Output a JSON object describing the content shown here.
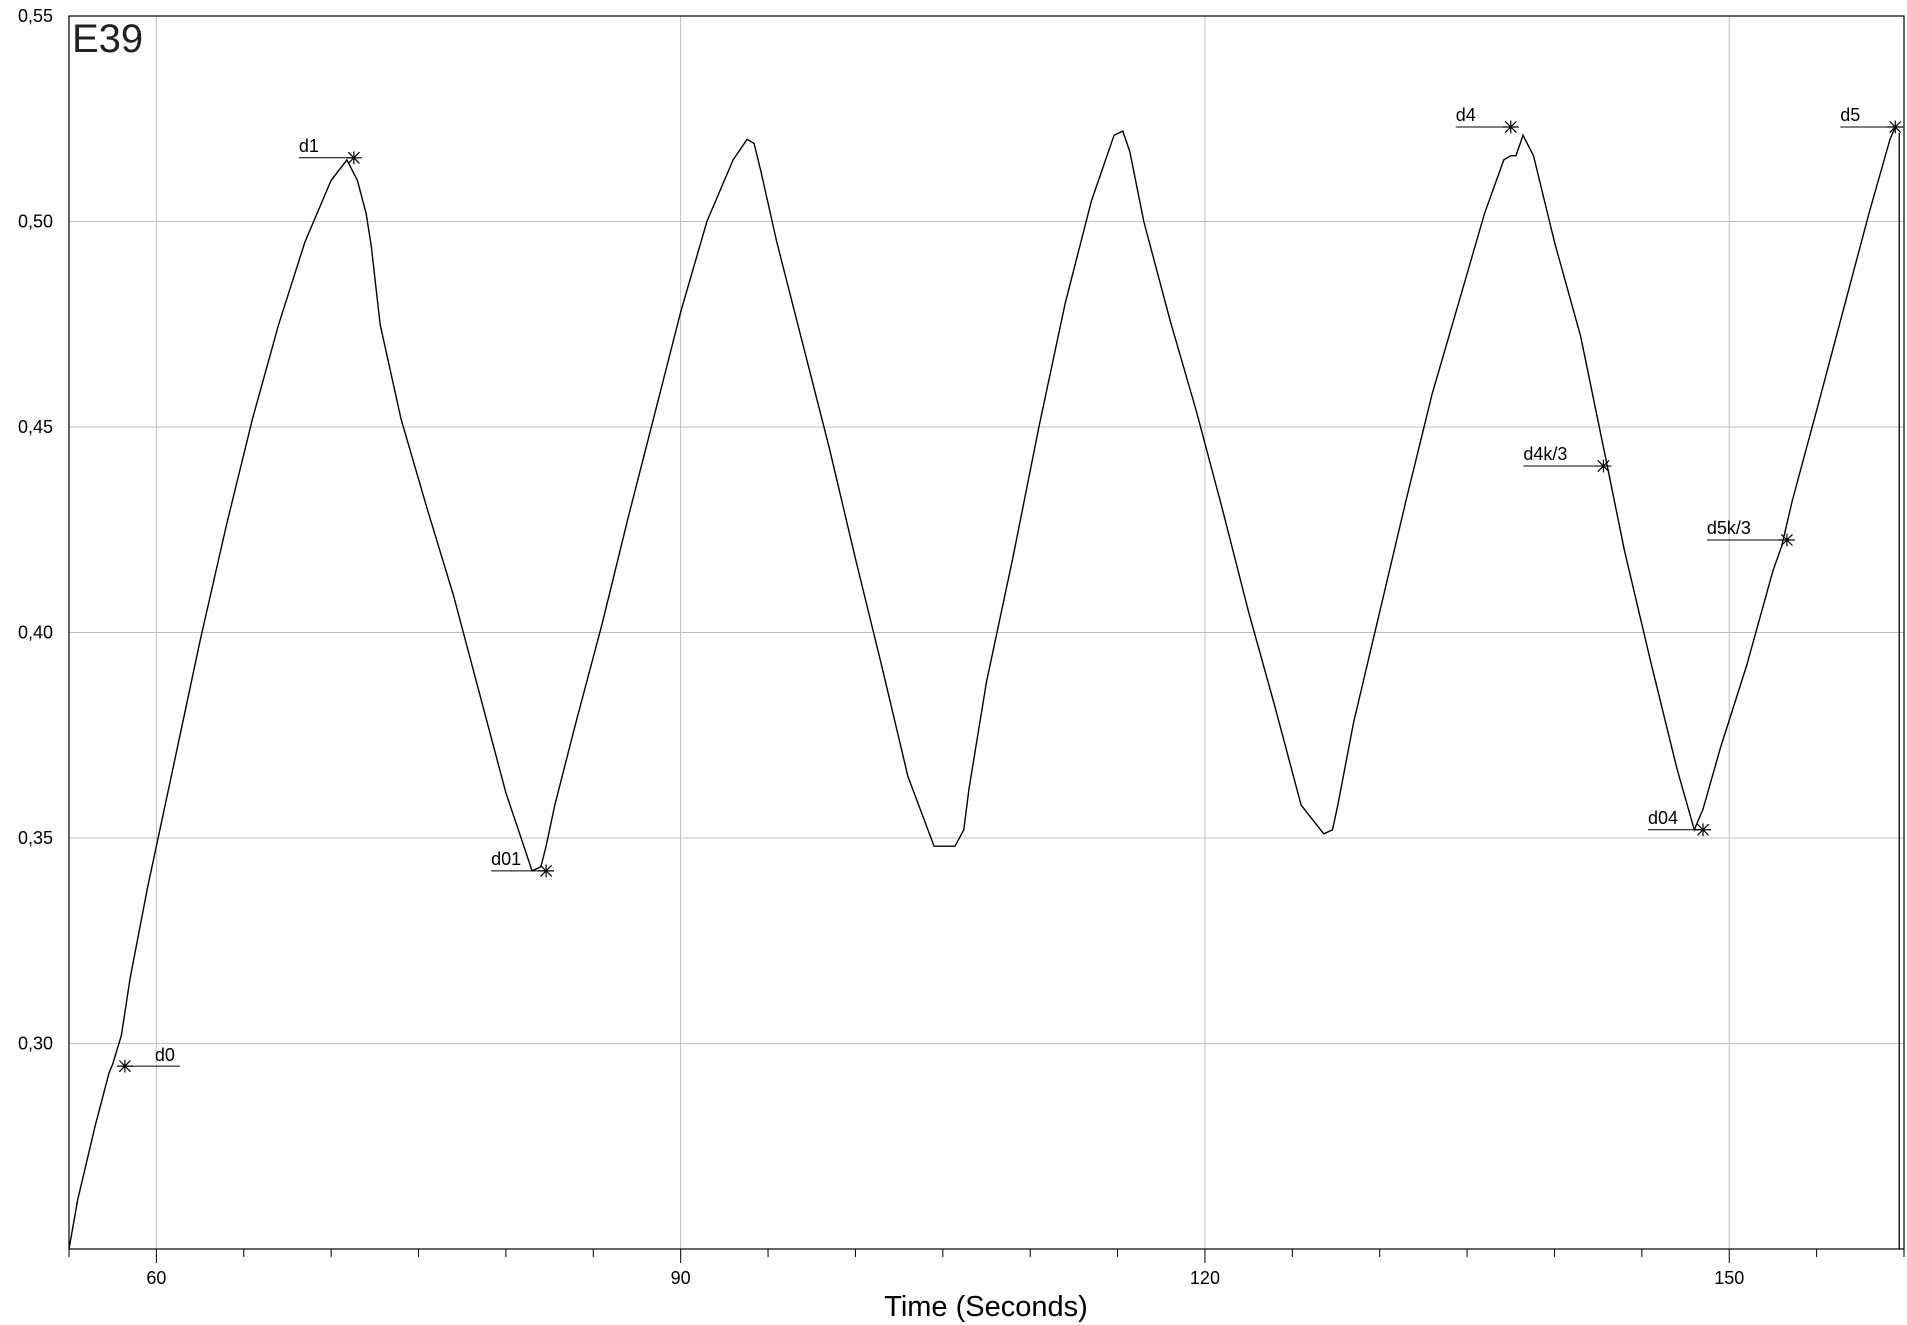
{
  "chart_data": {
    "type": "line",
    "title": "E39",
    "xlabel": "Time (Seconds)",
    "ylabel": "",
    "xlim": [
      55,
      160
    ],
    "ylim": [
      0.25,
      0.55
    ],
    "xtick_values": [
      60,
      90,
      120,
      150
    ],
    "xtick_labels": [
      "60",
      "90",
      "120",
      "150"
    ],
    "x_minor_step": 5,
    "ytick_values": [
      0.3,
      0.35,
      0.4,
      0.45,
      0.5,
      0.55
    ],
    "ytick_labels": [
      "0,30",
      "0,35",
      "0,40",
      "0,45",
      "0,50",
      "0,55"
    ],
    "grid": true,
    "legend": "none",
    "line_color": "#000000",
    "grid_color": "#c0c0c0",
    "series": [
      {
        "x": [
          55.0,
          55.5,
          56.5,
          57.3,
          57.5,
          58.0,
          58.5,
          59.5,
          61.0,
          62.5,
          64.0,
          65.5,
          67.0,
          68.5,
          70.0,
          70.9,
          71.5,
          72.0,
          72.3,
          72.8,
          74.0,
          75.5,
          77.0,
          78.5,
          80.0,
          81.5,
          82.0,
          82.3,
          82.8,
          84.0,
          85.5,
          87.0,
          88.5,
          90.0,
          91.5,
          93.0,
          93.8,
          94.2,
          94.6,
          95.5,
          97.0,
          98.5,
          100.0,
          101.5,
          103.0,
          104.5,
          105.7,
          106.2,
          106.5,
          107.5,
          109.0,
          110.5,
          112.0,
          113.5,
          114.8,
          115.3,
          115.7,
          116.5,
          118.0,
          119.5,
          121.0,
          122.5,
          124.0,
          125.5,
          126.8,
          127.3,
          127.6,
          128.5,
          130.0,
          131.5,
          133.0,
          134.5,
          136.0,
          137.1,
          137.5,
          137.8,
          138.2,
          138.8,
          140.0,
          141.5,
          142.9,
          144.0,
          145.5,
          147.0,
          148.0,
          148.5,
          149.5,
          151.0,
          152.5,
          153.0,
          153.6,
          155.0,
          156.5,
          158.0,
          159.2,
          159.5
        ],
        "y": [
          0.25,
          0.262,
          0.28,
          0.293,
          0.295,
          0.302,
          0.316,
          0.338,
          0.368,
          0.398,
          0.426,
          0.452,
          0.475,
          0.495,
          0.51,
          0.515,
          0.51,
          0.502,
          0.494,
          0.475,
          0.452,
          0.43,
          0.409,
          0.385,
          0.361,
          0.342,
          0.343,
          0.348,
          0.358,
          0.378,
          0.402,
          0.428,
          0.453,
          0.478,
          0.5,
          0.515,
          0.52,
          0.519,
          0.512,
          0.495,
          0.47,
          0.445,
          0.418,
          0.392,
          0.365,
          0.348,
          0.348,
          0.352,
          0.362,
          0.388,
          0.418,
          0.45,
          0.48,
          0.505,
          0.521,
          0.522,
          0.517,
          0.5,
          0.476,
          0.454,
          0.43,
          0.405,
          0.382,
          0.358,
          0.351,
          0.352,
          0.358,
          0.378,
          0.405,
          0.432,
          0.458,
          0.48,
          0.502,
          0.515,
          0.516,
          0.516,
          0.521,
          0.516,
          0.495,
          0.472,
          0.443,
          0.42,
          0.393,
          0.367,
          0.352,
          0.357,
          0.372,
          0.392,
          0.415,
          0.421,
          0.432,
          0.454,
          0.478,
          0.502,
          0.52,
          0.523
        ]
      }
    ],
    "markers": [
      {
        "label": "d0",
        "x": 58.2,
        "y": 0.2945,
        "side": "right"
      },
      {
        "label": "d1",
        "x": 71.3,
        "y": 0.5155,
        "side": "left"
      },
      {
        "label": "d01",
        "x": 82.3,
        "y": 0.342,
        "side": "left"
      },
      {
        "label": "d4",
        "x": 137.5,
        "y": 0.523,
        "side": "left"
      },
      {
        "label": "d4k/3",
        "x": 142.8,
        "y": 0.4405,
        "side": "left"
      },
      {
        "label": "d04",
        "x": 148.5,
        "y": 0.352,
        "side": "left"
      },
      {
        "label": "d5k/3",
        "x": 153.3,
        "y": 0.4225,
        "side": "left"
      },
      {
        "label": "d5",
        "x": 159.5,
        "y": 0.523,
        "side": "left"
      }
    ]
  }
}
